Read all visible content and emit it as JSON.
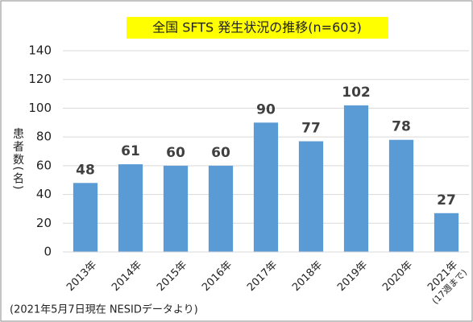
{
  "chart_data": {
    "type": "bar",
    "title": "全国 SFTS 発生状況の推移(n=603)",
    "y_label": "患者数(名)",
    "categories": [
      "2013年",
      "2014年",
      "2015年",
      "2016年",
      "2017年",
      "2018年",
      "2019年",
      "2020年",
      "2021年"
    ],
    "category_note": "(17週まで)",
    "values": [
      48,
      61,
      60,
      60,
      90,
      77,
      102,
      78,
      27
    ],
    "color": "#5b9bd5",
    "ylim": [
      0,
      140
    ],
    "yticks": [
      0,
      20,
      40,
      60,
      80,
      100,
      120,
      140
    ],
    "grid": true,
    "footnote": "(2021年5月7日現在 NESIDデータより)"
  }
}
